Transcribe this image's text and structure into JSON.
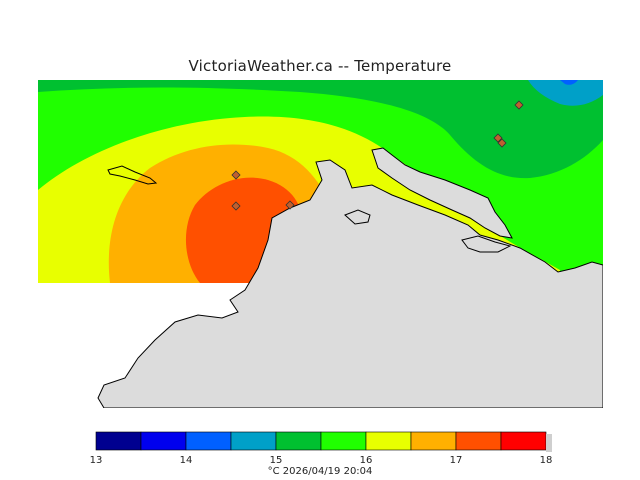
{
  "title": "VictoriaWeather.ca  --  Temperature",
  "colors": {
    "background": "#ffffff",
    "land": "#dcdcdc",
    "coast": "#000000"
  },
  "legend": {
    "bands": [
      {
        "from": 13.0,
        "to": 13.5,
        "color": "#000090"
      },
      {
        "from": 13.5,
        "to": 14.0,
        "color": "#0000ee"
      },
      {
        "from": 14.0,
        "to": 14.5,
        "color": "#0060ff"
      },
      {
        "from": 14.5,
        "to": 15.0,
        "color": "#00a0c8"
      },
      {
        "from": 15.0,
        "to": 15.5,
        "color": "#00c030"
      },
      {
        "from": 15.5,
        "to": 16.0,
        "color": "#20ff00"
      },
      {
        "from": 16.0,
        "to": 16.5,
        "color": "#e8ff00"
      },
      {
        "from": 16.5,
        "to": 17.0,
        "color": "#ffb000"
      },
      {
        "from": 17.0,
        "to": 17.5,
        "color": "#ff5000"
      },
      {
        "from": 17.5,
        "to": 18.0,
        "color": "#ff0000"
      }
    ],
    "tick_labels": [
      "13",
      "14",
      "15",
      "16",
      "17",
      "18"
    ]
  },
  "footer": {
    "unit": "°C",
    "timestamp": "2026/04/19 20:04"
  },
  "station_markers": 6
}
